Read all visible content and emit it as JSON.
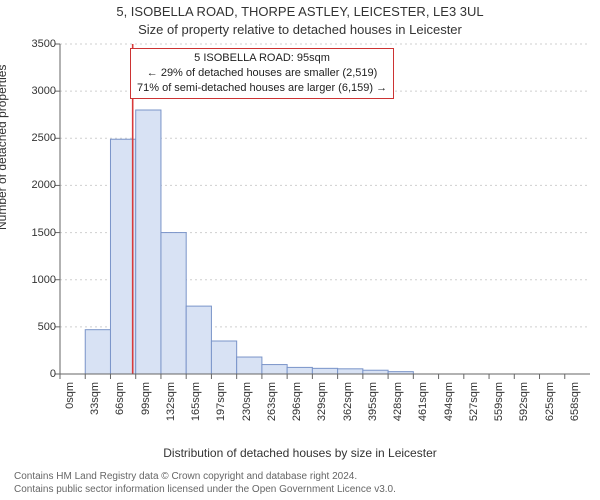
{
  "title_main": "5, ISOBELLA ROAD, THORPE ASTLEY, LEICESTER, LE3 3UL",
  "title_sub": "Size of property relative to detached houses in Leicester",
  "y_axis_label": "Number of detached properties",
  "x_axis_label": "Distribution of detached houses by size in Leicester",
  "annotation": {
    "line1": "5 ISOBELLA ROAD: 95sqm",
    "line2": "← 29% of detached houses are smaller (2,519)",
    "line3": "71% of semi-detached houses are larger (6,159) →"
  },
  "chart": {
    "type": "histogram",
    "categories": [
      "0sqm",
      "33sqm",
      "66sqm",
      "99sqm",
      "132sqm",
      "165sqm",
      "197sqm",
      "230sqm",
      "263sqm",
      "296sqm",
      "329sqm",
      "362sqm",
      "395sqm",
      "428sqm",
      "461sqm",
      "494sqm",
      "527sqm",
      "559sqm",
      "592sqm",
      "625sqm",
      "658sqm"
    ],
    "values": [
      0,
      470,
      2490,
      2800,
      1500,
      720,
      350,
      180,
      100,
      70,
      60,
      55,
      40,
      25,
      0,
      0,
      0,
      0,
      0,
      0,
      0
    ],
    "ylim": [
      0,
      3500
    ],
    "ytick_step": 500,
    "marker_x_index": 2.88,
    "bar_fill": "#d8e2f4",
    "bar_stroke": "#7a94c9",
    "marker_color": "#d83a3a",
    "grid_color": "#cfcfcf",
    "axis_color": "#666666",
    "background": "#ffffff"
  },
  "attribution": {
    "line1": "Contains HM Land Registry data © Crown copyright and database right 2024.",
    "line2": "Contains public sector information licensed under the Open Government Licence v3.0."
  }
}
